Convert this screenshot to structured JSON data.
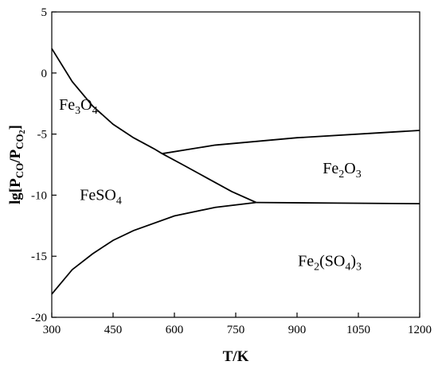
{
  "chart_data": {
    "type": "line",
    "xlabel": "T/K",
    "ylabel": "lg[P_CO/P_CO2]",
    "xlim": [
      300,
      1200
    ],
    "ylim": [
      -20,
      5
    ],
    "xticks": [
      300,
      450,
      600,
      750,
      900,
      1050,
      1200
    ],
    "yticks": [
      5,
      0,
      -5,
      -10,
      -15,
      -20
    ],
    "grid": false,
    "legend": "none",
    "series": [
      {
        "x": [
          300,
          350,
          400,
          450,
          500,
          550,
          570
        ],
        "y": [
          2.0,
          -0.7,
          -2.7,
          -4.2,
          -5.3,
          -6.2,
          -6.6
        ]
      },
      {
        "x": [
          570,
          620,
          680,
          740,
          800
        ],
        "y": [
          -6.6,
          -7.5,
          -8.6,
          -9.7,
          -10.6
        ]
      },
      {
        "x": [
          570,
          700,
          900,
          1100,
          1200
        ],
        "y": [
          -6.6,
          -5.9,
          -5.3,
          -4.9,
          -4.7
        ]
      },
      {
        "x": [
          300,
          350,
          400,
          450,
          500,
          600,
          700,
          800
        ],
        "y": [
          -18.1,
          -16.1,
          -14.8,
          -13.7,
          -12.9,
          -11.7,
          -11.0,
          -10.6
        ]
      },
      {
        "x": [
          800,
          1000,
          1200
        ],
        "y": [
          -10.6,
          -10.65,
          -10.7
        ]
      }
    ],
    "regions": [
      {
        "x": 365,
        "y": -3,
        "label": [
          "Fe",
          "3",
          "O",
          "4"
        ]
      },
      {
        "x": 1010,
        "y": -8.2,
        "label": [
          "Fe",
          "2",
          "O",
          "3"
        ]
      },
      {
        "x": 420,
        "y": -10.4,
        "label": [
          "FeSO",
          "4"
        ]
      },
      {
        "x": 980,
        "y": -15.8,
        "label": [
          "Fe",
          "2",
          "(SO",
          "4",
          ")",
          "3"
        ]
      }
    ]
  }
}
